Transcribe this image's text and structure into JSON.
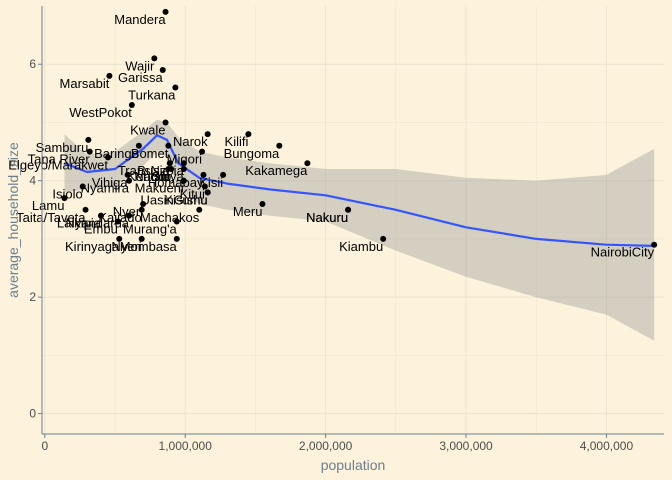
{
  "chart_data": {
    "type": "scatter",
    "title": "",
    "xlabel": "population",
    "ylabel": "average_household_size",
    "xlim": [
      -20000,
      4410000
    ],
    "ylim": [
      -0.35,
      7.0
    ],
    "x_ticks": [
      0,
      1000000,
      2000000,
      3000000,
      4000000
    ],
    "x_tick_labels": [
      "0",
      "1,000,000",
      "2,000,000",
      "3,000,000",
      "4,000,000"
    ],
    "y_ticks": [
      0,
      2,
      4,
      6
    ],
    "y_tick_labels": [
      "0",
      "2",
      "4",
      "6"
    ],
    "grid": true,
    "points": [
      {
        "label": "Mandera",
        "x": 860000,
        "y": 6.9
      },
      {
        "label": "Wajir",
        "x": 780000,
        "y": 6.1
      },
      {
        "label": "Garissa",
        "x": 840000,
        "y": 5.9
      },
      {
        "label": "Marsabit",
        "x": 460000,
        "y": 5.8
      },
      {
        "label": "Turkana",
        "x": 930000,
        "y": 5.6
      },
      {
        "label": "WestPokot",
        "x": 620000,
        "y": 5.3
      },
      {
        "label": "Kwale",
        "x": 860000,
        "y": 5.0
      },
      {
        "label": "Narok",
        "x": 1160000,
        "y": 4.8
      },
      {
        "label": "Kilifi",
        "x": 1450000,
        "y": 4.8
      },
      {
        "label": "Samburu",
        "x": 310000,
        "y": 4.7
      },
      {
        "label": "Baringo",
        "x": 670000,
        "y": 4.6
      },
      {
        "label": "Bomet",
        "x": 880000,
        "y": 4.6
      },
      {
        "label": "Bungoma",
        "x": 1670000,
        "y": 4.6
      },
      {
        "label": "Tana River",
        "x": 320000,
        "y": 4.5
      },
      {
        "label": "Elgeyo/Marakwet",
        "x": 450000,
        "y": 4.4
      },
      {
        "label": "Migori",
        "x": 1120000,
        "y": 4.5
      },
      {
        "label": "Busia",
        "x": 890000,
        "y": 4.3
      },
      {
        "label": "TransNzoia",
        "x": 990000,
        "y": 4.3
      },
      {
        "label": "Kakamega",
        "x": 1870000,
        "y": 4.3
      },
      {
        "label": "Kericho",
        "x": 900000,
        "y": 4.2
      },
      {
        "label": "Homabay",
        "x": 1130000,
        "y": 4.1
      },
      {
        "label": "Nandi",
        "x": 880000,
        "y": 4.2
      },
      {
        "label": "Siaya",
        "x": 990000,
        "y": 4.2
      },
      {
        "label": "Vihiga",
        "x": 590000,
        "y": 4.1
      },
      {
        "label": "Kisii",
        "x": 1270000,
        "y": 4.1
      },
      {
        "label": "Nyamira",
        "x": 600000,
        "y": 4.0
      },
      {
        "label": "Makueni",
        "x": 990000,
        "y": 4.0
      },
      {
        "label": "Kitui",
        "x": 1140000,
        "y": 3.9
      },
      {
        "label": "Kisumu",
        "x": 1160000,
        "y": 3.8
      },
      {
        "label": "Isiolo",
        "x": 270000,
        "y": 3.9
      },
      {
        "label": "Lamu",
        "x": 140000,
        "y": 3.7
      },
      {
        "label": "UasinGishu",
        "x": 1160000,
        "y": 3.8
      },
      {
        "label": "Meru",
        "x": 1550000,
        "y": 3.6
      },
      {
        "label": "Nyeri",
        "x": 700000,
        "y": 3.6
      },
      {
        "label": "Nakuru",
        "x": 2160000,
        "y": 3.5
      },
      {
        "label": "Taita/Taveta",
        "x": 290000,
        "y": 3.5
      },
      {
        "label": "Nakuru",
        "x": 2160000,
        "y": 3.5
      },
      {
        "label": "Machakos",
        "x": 1100000,
        "y": 3.5
      },
      {
        "label": "Kajiado",
        "x": 690000,
        "y": 3.5
      },
      {
        "label": "Nyandarua",
        "x": 600000,
        "y": 3.4
      },
      {
        "label": "Laikipia",
        "x": 400000,
        "y": 3.4
      },
      {
        "label": "Embu",
        "x": 520000,
        "y": 3.3
      },
      {
        "label": "Murang'a",
        "x": 940000,
        "y": 3.3
      },
      {
        "label": "Kirinyaga",
        "x": 530000,
        "y": 3.0
      },
      {
        "label": "Nyeri",
        "x": 690000,
        "y": 3.0
      },
      {
        "label": "Mombasa",
        "x": 940000,
        "y": 3.0
      },
      {
        "label": "Kiambu",
        "x": 2410000,
        "y": 3.0
      },
      {
        "label": "NairobiCity",
        "x": 4340000,
        "y": 2.9
      }
    ],
    "smooth": {
      "x": [
        140000,
        300000,
        500000,
        700000,
        800000,
        870000,
        950000,
        1100000,
        1300000,
        1600000,
        2000000,
        2500000,
        3000000,
        3500000,
        4000000,
        4340000
      ],
      "y": [
        4.3,
        4.15,
        4.2,
        4.55,
        4.78,
        4.7,
        4.3,
        4.05,
        3.95,
        3.85,
        3.75,
        3.5,
        3.2,
        3.0,
        2.9,
        2.88
      ],
      "lower": [
        3.8,
        3.85,
        3.9,
        4.25,
        4.5,
        4.4,
        3.85,
        3.6,
        3.5,
        3.4,
        3.3,
        2.8,
        2.35,
        2.0,
        1.7,
        1.25
      ],
      "upper": [
        4.8,
        4.45,
        4.5,
        4.85,
        5.05,
        5.0,
        4.75,
        4.5,
        4.4,
        4.3,
        4.2,
        4.2,
        4.05,
        4.0,
        4.1,
        4.55
      ]
    },
    "colors": {
      "background": "#fdf3dc",
      "grid": "#ebe3cf",
      "axis": "#6b7f8f",
      "point": "#000000",
      "smooth_line": "#3355ff",
      "ribbon": "#999999"
    }
  }
}
